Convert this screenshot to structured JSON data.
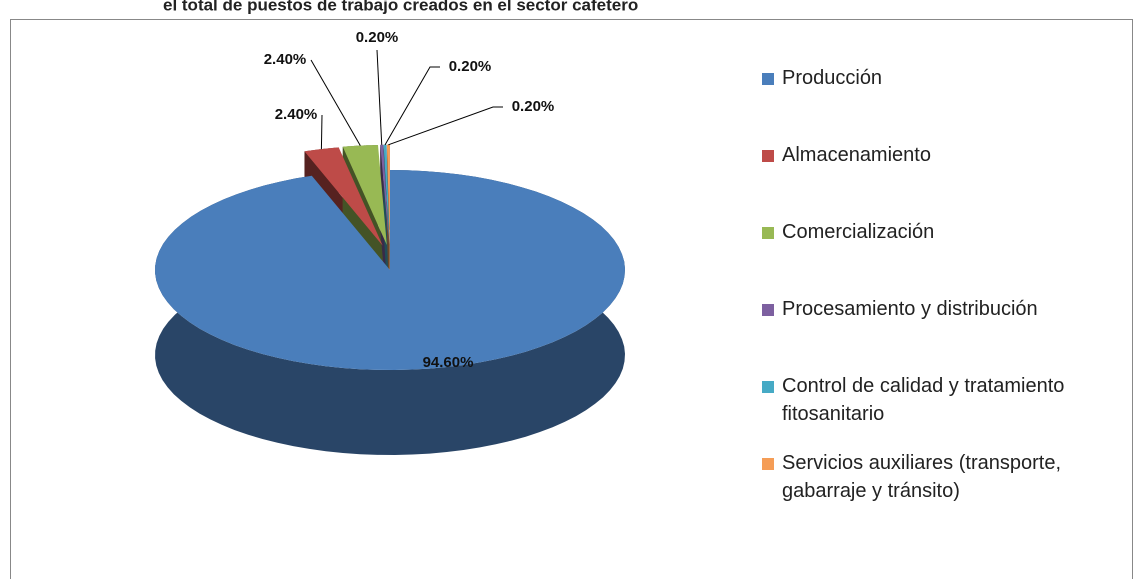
{
  "chart_data": {
    "type": "pie",
    "title": "el total de puestos de trabajo creados en el sector cafetero",
    "categories": [
      "Producción",
      "Almacenamiento",
      "Comercialización",
      "Procesamiento y distribución",
      "Control de calidad y tratamiento fitosanitario",
      "Servicios auxiliares (transporte, gabarraje y tránsito)"
    ],
    "values": [
      94.6,
      2.4,
      2.4,
      0.2,
      0.2,
      0.2
    ],
    "value_labels": [
      "94.60%",
      "2.40%",
      "2.40%",
      "0.20%",
      "0.20%",
      "0.20%"
    ],
    "colors": [
      "#4a7ebb",
      "#be4b48",
      "#98b954",
      "#7d60a0",
      "#46aac5",
      "#f59d56"
    ],
    "legend": "right"
  }
}
